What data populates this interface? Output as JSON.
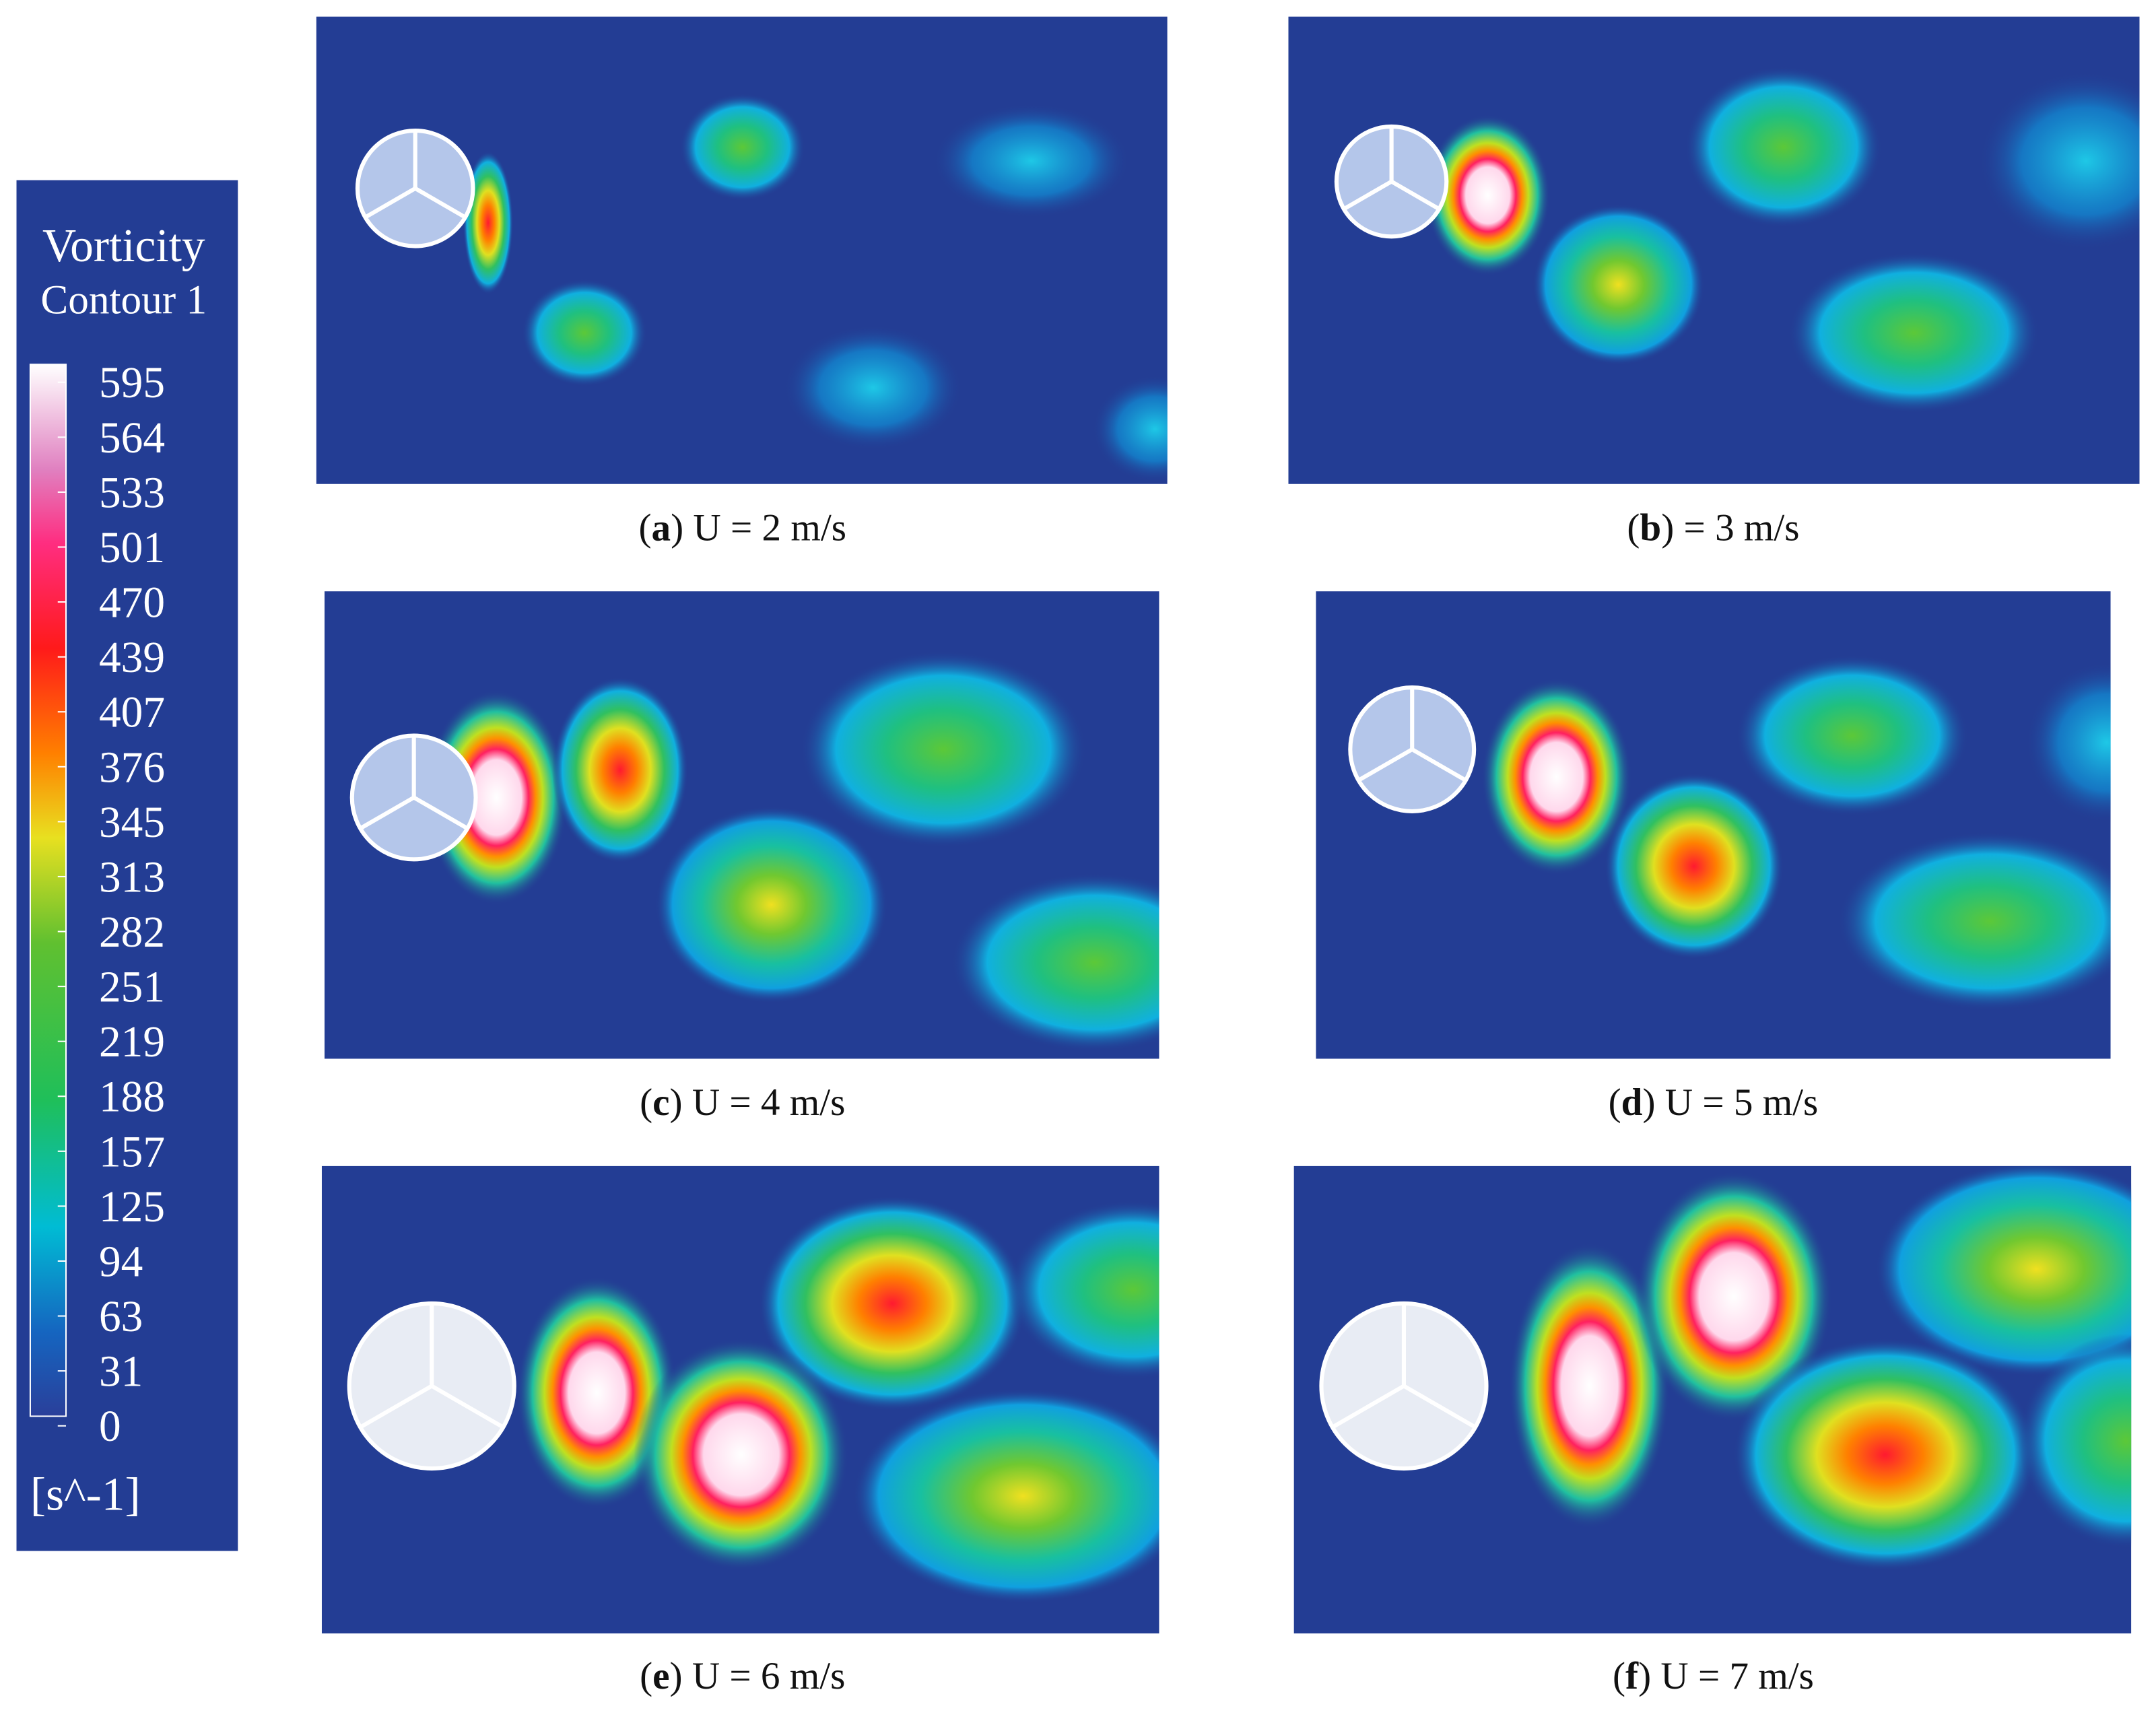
{
  "colorbar": {
    "title": [
      "Vorticity",
      "Contour 1"
    ],
    "ticks": [
      595,
      564,
      533,
      501,
      470,
      439,
      407,
      376,
      345,
      313,
      282,
      251,
      219,
      188,
      157,
      125,
      94,
      63,
      31,
      0
    ],
    "unit": "[s^-1]"
  },
  "panels": [
    {
      "caption_parts": [
        "(",
        "a",
        ") U = 2 m/s"
      ]
    },
    {
      "caption_parts": [
        "(",
        "b",
        ") = 3 m/s"
      ]
    },
    {
      "caption_parts": [
        "(",
        "c",
        ") U = 4 m/s"
      ]
    },
    {
      "caption_parts": [
        "(",
        "d",
        ") U = 5 m/s"
      ]
    },
    {
      "caption_parts": [
        "(",
        "e",
        ") U = 6 m/s"
      ]
    },
    {
      "caption_parts": [
        "(",
        "f",
        ") U = 7 m/s"
      ]
    }
  ]
}
